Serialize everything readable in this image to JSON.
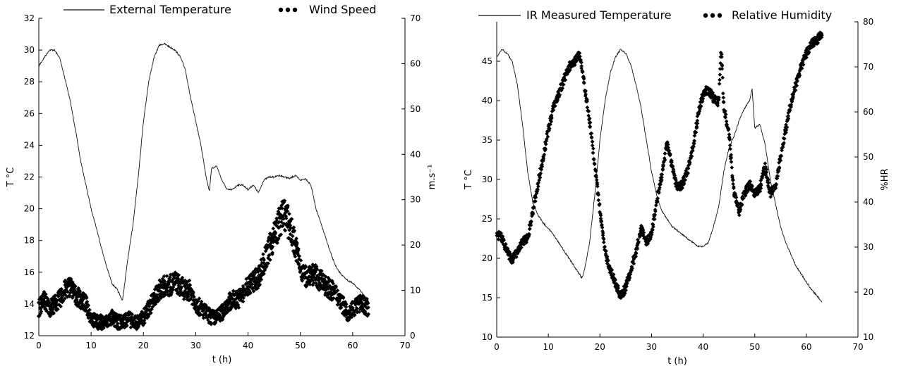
{
  "chart_data": [
    {
      "type": "line",
      "id": "left",
      "xlabel": "t (h)",
      "ylabel_left": "T °C",
      "ylabel_right": "m.s⁻¹",
      "xlim": [
        0,
        70
      ],
      "ylim_left": [
        12,
        32
      ],
      "ylim_right": [
        0,
        70
      ],
      "xticks": [
        0,
        10,
        20,
        30,
        40,
        50,
        60,
        70
      ],
      "yticks_left": [
        12,
        14,
        16,
        18,
        20,
        22,
        24,
        26,
        28,
        30,
        32
      ],
      "yticks_right": [
        0,
        10,
        20,
        30,
        40,
        50,
        60,
        70
      ],
      "grid": false,
      "legend_position": "top",
      "legend": [
        "External Temperature",
        "Wind Speed"
      ],
      "series": [
        {
          "name": "External Temperature",
          "style": "line",
          "axis": "left",
          "points": [
            [
              0,
              29.0
            ],
            [
              1,
              29.5
            ],
            [
              2,
              30.0
            ],
            [
              3,
              30.0
            ],
            [
              4,
              29.5
            ],
            [
              5,
              28.2
            ],
            [
              6,
              26.8
            ],
            [
              7,
              25.0
            ],
            [
              8,
              23.0
            ],
            [
              9,
              21.5
            ],
            [
              10,
              20.0
            ],
            [
              11,
              18.8
            ],
            [
              12,
              17.5
            ],
            [
              13,
              16.3
            ],
            [
              14,
              15.3
            ],
            [
              15,
              14.9
            ],
            [
              16,
              14.2
            ],
            [
              16.5,
              15.5
            ],
            [
              17,
              16.8
            ],
            [
              18,
              19.0
            ],
            [
              19,
              22.0
            ],
            [
              20,
              25.5
            ],
            [
              21,
              28.0
            ],
            [
              22,
              29.5
            ],
            [
              23,
              30.3
            ],
            [
              24,
              30.4
            ],
            [
              25,
              30.2
            ],
            [
              26,
              30.0
            ],
            [
              27,
              29.6
            ],
            [
              28,
              28.8
            ],
            [
              29,
              27.0
            ],
            [
              30,
              25.5
            ],
            [
              31,
              24.0
            ],
            [
              32,
              22.0
            ],
            [
              32.6,
              21.1
            ],
            [
              33,
              22.5
            ],
            [
              34,
              22.7
            ],
            [
              35,
              21.8
            ],
            [
              36,
              21.2
            ],
            [
              37,
              21.2
            ],
            [
              38,
              21.5
            ],
            [
              39,
              21.5
            ],
            [
              40,
              21.2
            ],
            [
              41,
              21.5
            ],
            [
              42,
              21.0
            ],
            [
              43,
              21.8
            ],
            [
              44,
              22.0
            ],
            [
              45,
              22.0
            ],
            [
              46,
              22.1
            ],
            [
              47,
              22.0
            ],
            [
              48,
              21.9
            ],
            [
              49,
              22.1
            ],
            [
              50,
              21.8
            ],
            [
              51,
              21.9
            ],
            [
              52,
              21.5
            ],
            [
              53,
              20.0
            ],
            [
              54,
              19.0
            ],
            [
              55,
              18.0
            ],
            [
              56,
              17.0
            ],
            [
              57,
              16.2
            ],
            [
              58,
              15.8
            ],
            [
              59,
              15.5
            ],
            [
              60,
              15.3
            ],
            [
              61,
              15.0
            ],
            [
              62,
              14.6
            ],
            [
              63,
              14.2
            ]
          ]
        },
        {
          "name": "Wind Speed",
          "style": "dots",
          "axis": "right",
          "points": [
            [
              0,
              6
            ],
            [
              1,
              8
            ],
            [
              2,
              6
            ],
            [
              3,
              7
            ],
            [
              4,
              8
            ],
            [
              5,
              10
            ],
            [
              6,
              11
            ],
            [
              7,
              9
            ],
            [
              8,
              8
            ],
            [
              9,
              7
            ],
            [
              10,
              4
            ],
            [
              11,
              3
            ],
            [
              12,
              3
            ],
            [
              13,
              3
            ],
            [
              14,
              4
            ],
            [
              15,
              3
            ],
            [
              16,
              3
            ],
            [
              17,
              4
            ],
            [
              18,
              3
            ],
            [
              19,
              3
            ],
            [
              20,
              4
            ],
            [
              21,
              6
            ],
            [
              22,
              8
            ],
            [
              23,
              10
            ],
            [
              24,
              11
            ],
            [
              25,
              11
            ],
            [
              26,
              12
            ],
            [
              27,
              11
            ],
            [
              28,
              10
            ],
            [
              29,
              10
            ],
            [
              30,
              7
            ],
            [
              31,
              6
            ],
            [
              32,
              5
            ],
            [
              33,
              4
            ],
            [
              34,
              4
            ],
            [
              35,
              5
            ],
            [
              36,
              7
            ],
            [
              37,
              8
            ],
            [
              38,
              8
            ],
            [
              39,
              9
            ],
            [
              40,
              11
            ],
            [
              41,
              12
            ],
            [
              42,
              13
            ],
            [
              43,
              16
            ],
            [
              44,
              19
            ],
            [
              45,
              22
            ],
            [
              46,
              25
            ],
            [
              47,
              27
            ],
            [
              48,
              24
            ],
            [
              49,
              20
            ],
            [
              50,
              15
            ],
            [
              51,
              13
            ],
            [
              52,
              14
            ],
            [
              53,
              13
            ],
            [
              54,
              12
            ],
            [
              55,
              11
            ],
            [
              56,
              10
            ],
            [
              57,
              9
            ],
            [
              58,
              7
            ],
            [
              59,
              5
            ],
            [
              60,
              6
            ],
            [
              61,
              7
            ],
            [
              62,
              7
            ],
            [
              63,
              6
            ]
          ]
        }
      ]
    },
    {
      "type": "line",
      "id": "right",
      "xlabel": "t (h)",
      "ylabel_left": "T °C",
      "ylabel_right": "%HR",
      "xlim": [
        0,
        70
      ],
      "ylim_left": [
        10,
        50
      ],
      "ylim_right": [
        10,
        80
      ],
      "xticks": [
        0,
        10,
        20,
        30,
        40,
        50,
        60,
        70
      ],
      "yticks_left": [
        10,
        15,
        20,
        25,
        30,
        35,
        40,
        45
      ],
      "yticks_right": [
        10,
        20,
        30,
        40,
        50,
        60,
        70,
        80
      ],
      "grid": false,
      "legend_position": "top",
      "legend": [
        "IR Measured Temperature",
        "Relative Humidity"
      ],
      "series": [
        {
          "name": "IR Measured Temperature",
          "style": "line",
          "axis": "left",
          "points": [
            [
              0,
              45.5
            ],
            [
              1,
              46.5
            ],
            [
              2,
              46.0
            ],
            [
              3,
              45.0
            ],
            [
              4,
              42.0
            ],
            [
              5,
              37.0
            ],
            [
              6,
              31.0
            ],
            [
              7,
              27.0
            ],
            [
              8,
              25.5
            ],
            [
              9,
              24.5
            ],
            [
              10,
              23.8
            ],
            [
              11,
              23.0
            ],
            [
              12,
              22.0
            ],
            [
              13,
              21.0
            ],
            [
              14,
              20.0
            ],
            [
              15,
              19.0
            ],
            [
              16,
              18.0
            ],
            [
              16.5,
              17.5
            ],
            [
              17,
              18.5
            ],
            [
              18,
              22.0
            ],
            [
              19,
              28.0
            ],
            [
              20,
              35.0
            ],
            [
              21,
              40.0
            ],
            [
              22,
              43.5
            ],
            [
              23,
              45.5
            ],
            [
              24,
              46.5
            ],
            [
              25,
              46.0
            ],
            [
              26,
              44.5
            ],
            [
              27,
              42.0
            ],
            [
              28,
              39.0
            ],
            [
              29,
              35.0
            ],
            [
              30,
              31.0
            ],
            [
              31,
              28.0
            ],
            [
              32,
              26.0
            ],
            [
              33,
              25.0
            ],
            [
              34,
              24.0
            ],
            [
              35,
              23.5
            ],
            [
              36,
              23.0
            ],
            [
              37,
              22.5
            ],
            [
              38,
              22.0
            ],
            [
              39,
              21.5
            ],
            [
              40,
              21.5
            ],
            [
              41,
              22.0
            ],
            [
              42,
              24.0
            ],
            [
              43,
              26.5
            ],
            [
              44,
              31.0
            ],
            [
              45,
              34.0
            ],
            [
              46,
              35.5
            ],
            [
              47,
              37.5
            ],
            [
              48,
              39.0
            ],
            [
              49,
              40.0
            ],
            [
              49.5,
              41.5
            ],
            [
              50,
              36.5
            ],
            [
              51,
              37.0
            ],
            [
              52,
              34.5
            ],
            [
              53,
              30.0
            ],
            [
              54,
              27.0
            ],
            [
              55,
              24.0
            ],
            [
              56,
              22.0
            ],
            [
              57,
              20.5
            ],
            [
              58,
              19.0
            ],
            [
              59,
              18.0
            ],
            [
              60,
              17.0
            ],
            [
              61,
              16.0
            ],
            [
              62,
              15.3
            ],
            [
              63,
              14.5
            ]
          ]
        },
        {
          "name": "Relative Humidity",
          "style": "dots",
          "axis": "right",
          "points": [
            [
              0,
              33
            ],
            [
              1,
              32
            ],
            [
              2,
              29
            ],
            [
              3,
              27
            ],
            [
              4,
              29
            ],
            [
              5,
              31
            ],
            [
              6,
              32
            ],
            [
              7,
              38
            ],
            [
              8,
              44
            ],
            [
              9,
              50
            ],
            [
              10,
              56
            ],
            [
              11,
              61
            ],
            [
              12,
              64
            ],
            [
              13,
              67
            ],
            [
              14,
              70
            ],
            [
              15,
              71
            ],
            [
              16,
              73
            ],
            [
              16.5,
              70
            ],
            [
              17,
              66
            ],
            [
              18,
              58
            ],
            [
              19,
              48
            ],
            [
              20,
              38
            ],
            [
              21,
              29
            ],
            [
              22,
              25
            ],
            [
              23,
              22
            ],
            [
              24,
              19
            ],
            [
              25,
              21
            ],
            [
              26,
              25
            ],
            [
              27,
              29
            ],
            [
              28,
              34
            ],
            [
              29,
              31
            ],
            [
              30,
              33
            ],
            [
              31,
              40
            ],
            [
              32,
              46
            ],
            [
              33,
              53
            ],
            [
              34,
              48
            ],
            [
              35,
              43
            ],
            [
              36,
              44
            ],
            [
              37,
              47
            ],
            [
              38,
              52
            ],
            [
              39,
              59
            ],
            [
              40,
              64
            ],
            [
              41,
              65
            ],
            [
              42,
              63
            ],
            [
              43,
              62
            ],
            [
              43.5,
              75
            ],
            [
              44,
              61
            ],
            [
              45,
              55
            ],
            [
              46,
              42
            ],
            [
              47,
              38
            ],
            [
              48,
              42
            ],
            [
              49,
              44
            ],
            [
              50,
              42
            ],
            [
              51,
              43
            ],
            [
              52,
              48
            ],
            [
              53,
              42
            ],
            [
              54,
              43
            ],
            [
              55,
              50
            ],
            [
              56,
              56
            ],
            [
              57,
              62
            ],
            [
              58,
              66
            ],
            [
              59,
              70
            ],
            [
              60,
              73
            ],
            [
              61,
              75
            ],
            [
              62,
              76
            ],
            [
              63,
              77
            ]
          ]
        }
      ]
    }
  ]
}
